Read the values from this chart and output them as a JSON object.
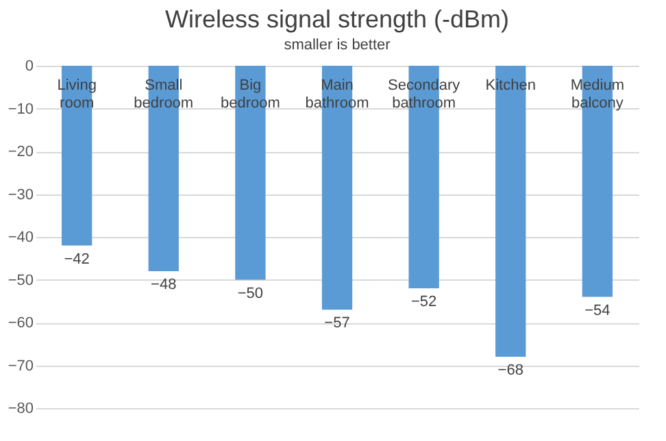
{
  "chart_data": {
    "type": "bar",
    "title": "Wireless signal strength (-dBm)",
    "subtitle": "smaller is better",
    "categories": [
      "Living room",
      "Small bedroom",
      "Big bedroom",
      "Main bathroom",
      "Secondary bathroom",
      "Kitchen",
      "Medium balcony"
    ],
    "values": [
      -42,
      -48,
      -50,
      -57,
      -52,
      -68,
      -54
    ],
    "color": "#5b9bd5",
    "ylim": [
      -80,
      0
    ],
    "yticks": [
      0,
      -10,
      -20,
      -30,
      -40,
      -50,
      -60,
      -70,
      -80
    ],
    "grid": "y",
    "data_labels": true
  }
}
